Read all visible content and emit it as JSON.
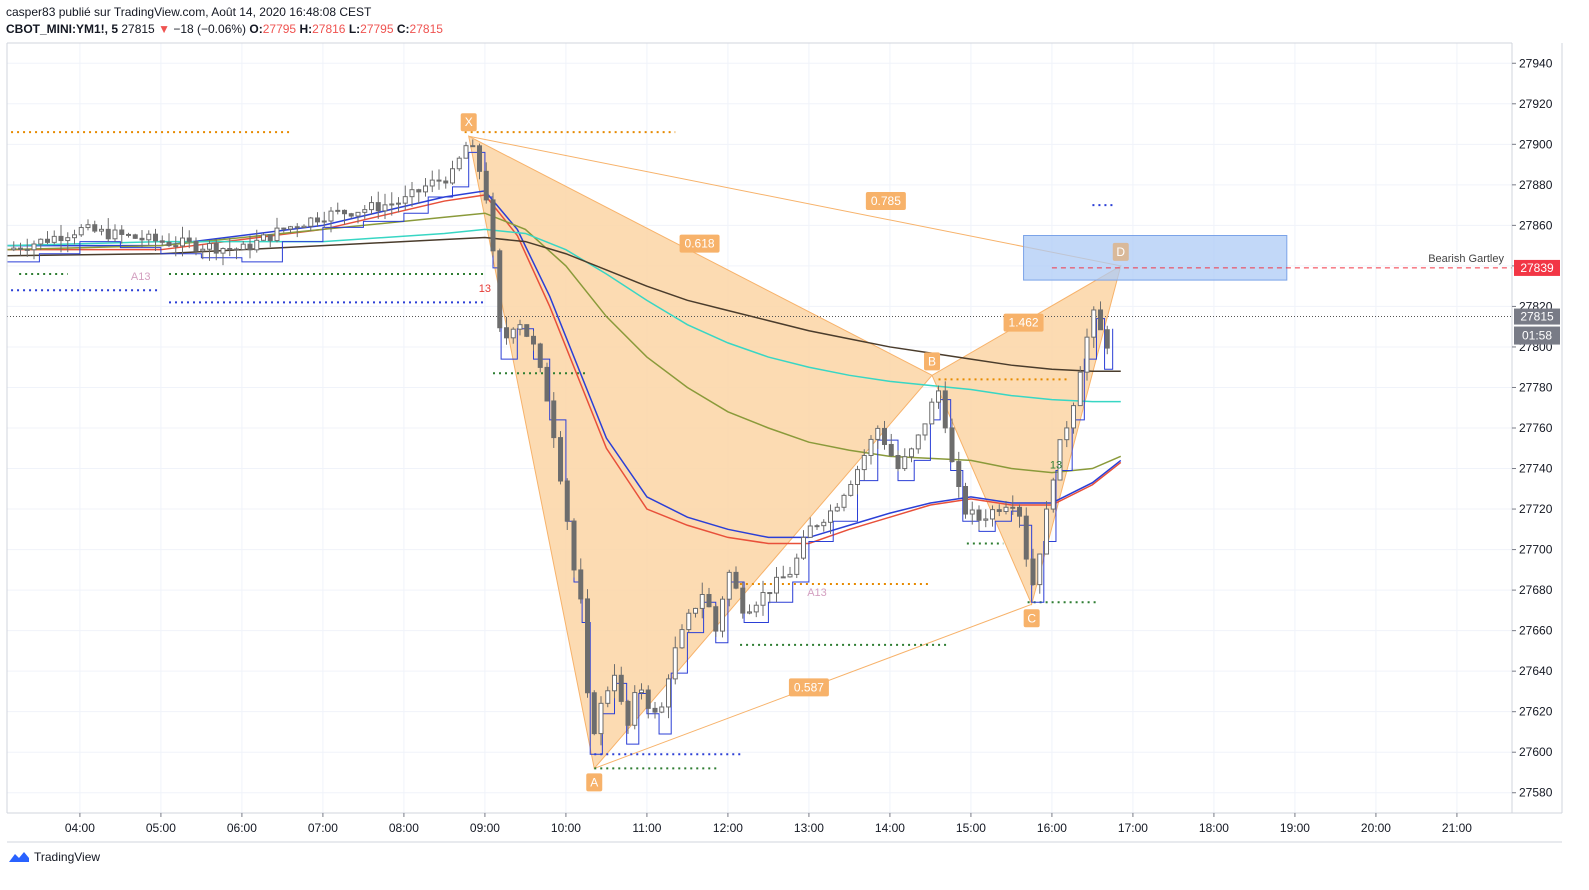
{
  "header": {
    "line1": "casper83 publié sur TradingView.com, Août 14, 2020 16:48:08 CEST",
    "symbol": "CBOT_MINI:YM1!, 5",
    "last": "27815",
    "change": "−18 (−0.06%)",
    "o_label": "O:",
    "o_value": "27795",
    "h_label": "H:",
    "h_value": "27816",
    "l_label": "L:",
    "l_value": "27795",
    "c_label": "C:",
    "c_value": "27815"
  },
  "footer": {
    "brand": "TradingView"
  },
  "colors": {
    "pattern_fill": "#fcd5a4",
    "pattern_line": "#f7b26a",
    "prz_box": "#aecbf5",
    "price_red": "#f23645",
    "candle": "#6d6d6d",
    "ema_red": "#e8503a",
    "ema_blue": "#2b3fd6",
    "ema_olive": "#8a9a3a",
    "ema_teal": "#38d6c4",
    "ema_dark": "#4a3c2c"
  },
  "chart_data": {
    "type": "candlestick",
    "symbol": "CBOT_MINI:YM1!",
    "timeframe": "5",
    "ylim": [
      27570,
      27950
    ],
    "y_ticks": [
      "27580",
      "27600",
      "27620",
      "27640",
      "27660",
      "27680",
      "27700",
      "27720",
      "27740",
      "27760",
      "27780",
      "27800",
      "27820",
      "27840",
      "27860",
      "27880",
      "27900",
      "27920",
      "27940"
    ],
    "x_ticks": [
      "04:00",
      "05:00",
      "06:00",
      "07:00",
      "08:00",
      "09:00",
      "10:00",
      "11:00",
      "12:00",
      "13:00",
      "14:00",
      "15:00",
      "16:00",
      "17:00",
      "18:00",
      "19:00",
      "20:00",
      "21:00"
    ],
    "x_range_hours": [
      3.1,
      21.68
    ],
    "close_path": [
      [
        3.1,
        27848
      ],
      [
        3.5,
        27852
      ],
      [
        4.0,
        27858
      ],
      [
        4.5,
        27855
      ],
      [
        5.0,
        27852
      ],
      [
        5.5,
        27850
      ],
      [
        6.0,
        27848
      ],
      [
        6.5,
        27858
      ],
      [
        7.0,
        27865
      ],
      [
        7.5,
        27868
      ],
      [
        8.0,
        27872
      ],
      [
        8.3,
        27880
      ],
      [
        8.6,
        27885
      ],
      [
        8.8,
        27902
      ],
      [
        9.0,
        27880
      ],
      [
        9.1,
        27845
      ],
      [
        9.2,
        27800
      ],
      [
        9.4,
        27815
      ],
      [
        9.6,
        27800
      ],
      [
        9.8,
        27770
      ],
      [
        10.0,
        27720
      ],
      [
        10.1,
        27690
      ],
      [
        10.2,
        27670
      ],
      [
        10.3,
        27605
      ],
      [
        10.45,
        27625
      ],
      [
        10.6,
        27640
      ],
      [
        10.75,
        27610
      ],
      [
        10.9,
        27635
      ],
      [
        11.0,
        27625
      ],
      [
        11.15,
        27615
      ],
      [
        11.3,
        27645
      ],
      [
        11.5,
        27665
      ],
      [
        11.7,
        27680
      ],
      [
        11.85,
        27660
      ],
      [
        12.0,
        27690
      ],
      [
        12.2,
        27670
      ],
      [
        12.5,
        27680
      ],
      [
        12.8,
        27690
      ],
      [
        13.0,
        27710
      ],
      [
        13.3,
        27720
      ],
      [
        13.6,
        27740
      ],
      [
        13.85,
        27760
      ],
      [
        14.1,
        27740
      ],
      [
        14.3,
        27750
      ],
      [
        14.5,
        27770
      ],
      [
        14.62,
        27780
      ],
      [
        14.75,
        27745
      ],
      [
        14.9,
        27720
      ],
      [
        15.1,
        27715
      ],
      [
        15.3,
        27720
      ],
      [
        15.5,
        27725
      ],
      [
        15.6,
        27718
      ],
      [
        15.75,
        27680
      ],
      [
        15.9,
        27710
      ],
      [
        16.05,
        27745
      ],
      [
        16.25,
        27770
      ],
      [
        16.4,
        27800
      ],
      [
        16.55,
        27820
      ],
      [
        16.65,
        27795
      ],
      [
        16.75,
        27815
      ]
    ],
    "indicators": {
      "ema_red": [
        [
          3.1,
          27848
        ],
        [
          5,
          27848
        ],
        [
          7,
          27858
        ],
        [
          8.5,
          27872
        ],
        [
          9.0,
          27875
        ],
        [
          9.4,
          27855
        ],
        [
          9.8,
          27820
        ],
        [
          10.5,
          27750
        ],
        [
          11.0,
          27720
        ],
        [
          11.5,
          27712
        ],
        [
          12.0,
          27706
        ],
        [
          12.5,
          27703
        ],
        [
          13.0,
          27703
        ],
        [
          13.5,
          27710
        ],
        [
          14.0,
          27716
        ],
        [
          14.5,
          27722
        ],
        [
          15.0,
          27725
        ],
        [
          15.5,
          27722
        ],
        [
          16.0,
          27722
        ],
        [
          16.5,
          27732
        ],
        [
          16.85,
          27743
        ]
      ],
      "ema_blue": [
        [
          3.1,
          27850
        ],
        [
          5,
          27850
        ],
        [
          7,
          27860
        ],
        [
          8.5,
          27874
        ],
        [
          9.0,
          27877
        ],
        [
          9.4,
          27858
        ],
        [
          9.8,
          27825
        ],
        [
          10.5,
          27755
        ],
        [
          11.0,
          27726
        ],
        [
          11.5,
          27716
        ],
        [
          12.0,
          27710
        ],
        [
          12.5,
          27706
        ],
        [
          13.0,
          27706
        ],
        [
          13.5,
          27712
        ],
        [
          14.0,
          27718
        ],
        [
          14.5,
          27723
        ],
        [
          15.0,
          27726
        ],
        [
          15.5,
          27723
        ],
        [
          16.0,
          27723
        ],
        [
          16.5,
          27733
        ],
        [
          16.85,
          27744
        ]
      ],
      "ema_olive": [
        [
          3.1,
          27848
        ],
        [
          5,
          27850
        ],
        [
          7,
          27858
        ],
        [
          8.5,
          27864
        ],
        [
          9.0,
          27866
        ],
        [
          9.5,
          27858
        ],
        [
          10.0,
          27840
        ],
        [
          10.5,
          27815
        ],
        [
          11.0,
          27795
        ],
        [
          11.5,
          27780
        ],
        [
          12.0,
          27768
        ],
        [
          12.5,
          27760
        ],
        [
          13.0,
          27753
        ],
        [
          13.5,
          27749
        ],
        [
          14.0,
          27746
        ],
        [
          14.5,
          27745
        ],
        [
          15.0,
          27744
        ],
        [
          15.5,
          27740
        ],
        [
          16.0,
          27738
        ],
        [
          16.5,
          27740
        ],
        [
          16.85,
          27746
        ]
      ],
      "ema_teal": [
        [
          3.1,
          27850
        ],
        [
          5,
          27852
        ],
        [
          7,
          27852
        ],
        [
          8.5,
          27856
        ],
        [
          9.0,
          27858
        ],
        [
          9.5,
          27856
        ],
        [
          10.0,
          27848
        ],
        [
          10.5,
          27836
        ],
        [
          11.0,
          27823
        ],
        [
          11.5,
          27811
        ],
        [
          12.0,
          27802
        ],
        [
          12.5,
          27795
        ],
        [
          13.0,
          27790
        ],
        [
          13.5,
          27786
        ],
        [
          14.0,
          27783
        ],
        [
          14.5,
          27781
        ],
        [
          15.0,
          27779
        ],
        [
          15.5,
          27776
        ],
        [
          16.0,
          27774
        ],
        [
          16.5,
          27773
        ],
        [
          16.85,
          27773
        ]
      ],
      "ema_dark": [
        [
          3.1,
          27845
        ],
        [
          5,
          27846
        ],
        [
          7,
          27850
        ],
        [
          8.5,
          27853
        ],
        [
          9.0,
          27854
        ],
        [
          9.5,
          27852
        ],
        [
          10.0,
          27846
        ],
        [
          10.5,
          27838
        ],
        [
          11.0,
          27830
        ],
        [
          11.5,
          27823
        ],
        [
          12.0,
          27818
        ],
        [
          12.5,
          27813
        ],
        [
          13.0,
          27808
        ],
        [
          13.5,
          27804
        ],
        [
          14.0,
          27800
        ],
        [
          14.5,
          27797
        ],
        [
          15.0,
          27794
        ],
        [
          15.5,
          27791
        ],
        [
          16.0,
          27789
        ],
        [
          16.5,
          27788
        ],
        [
          16.85,
          27788
        ]
      ]
    },
    "harmonic_pattern": {
      "name": "Bearish Gartley",
      "points": [
        {
          "label": "X",
          "x": 8.8,
          "y": 27904
        },
        {
          "label": "A",
          "x": 10.35,
          "y": 27592
        },
        {
          "label": "B",
          "x": 14.52,
          "y": 27786
        },
        {
          "label": "C",
          "x": 15.75,
          "y": 27673
        },
        {
          "label": "D",
          "x": 16.85,
          "y": 27840
        }
      ],
      "ratios": [
        {
          "text": "0.618",
          "x": 11.65,
          "y": 27851
        },
        {
          "text": "0.587",
          "x": 13.0,
          "y": 27632
        },
        {
          "text": "1.462",
          "x": 15.65,
          "y": 27812
        },
        {
          "text": "0.785",
          "x": 13.95,
          "y": 27872
        }
      ],
      "prz_box": {
        "x0": 15.65,
        "x1": 18.9,
        "y0": 27833,
        "y1": 27855
      }
    },
    "levels": {
      "target": 27839,
      "target_label": "27839",
      "pattern_label": "Bearish Gartley",
      "last_price": 27815,
      "last_label": "27815",
      "countdown": "01:58",
      "axis_hidden_label": "27820"
    },
    "dotted_levels": [
      {
        "color": "#e68a00",
        "y": 27906,
        "x0": 3.15,
        "x1": 6.6
      },
      {
        "color": "#e68a00",
        "y": 27906,
        "x0": 8.75,
        "x1": 11.35
      },
      {
        "color": "#2b3fd6",
        "y": 27828,
        "x0": 3.15,
        "x1": 5.0
      },
      {
        "color": "#2b3fd6",
        "y": 27822,
        "x0": 5.1,
        "x1": 9.0
      },
      {
        "color": "#2e7d32",
        "y": 27836,
        "x0": 3.25,
        "x1": 3.85
      },
      {
        "color": "#2e7d32",
        "y": 27836,
        "x0": 5.1,
        "x1": 9.0
      },
      {
        "color": "#2e7d32",
        "y": 27787,
        "x0": 9.1,
        "x1": 10.25
      },
      {
        "color": "#2b3fd6",
        "y": 27599,
        "x0": 10.35,
        "x1": 12.2
      },
      {
        "color": "#2e7d32",
        "y": 27592,
        "x0": 10.35,
        "x1": 11.9
      },
      {
        "color": "#e68a00",
        "y": 27683,
        "x0": 12.0,
        "x1": 14.5
      },
      {
        "color": "#2e7d32",
        "y": 27653,
        "x0": 12.15,
        "x1": 14.7
      },
      {
        "color": "#e68a00",
        "y": 27784,
        "x0": 14.6,
        "x1": 16.2
      },
      {
        "color": "#2e7d32",
        "y": 27703,
        "x0": 14.95,
        "x1": 15.4
      },
      {
        "color": "#2e7d32",
        "y": 27674,
        "x0": 15.7,
        "x1": 16.55
      },
      {
        "color": "#2b3fd6",
        "y": 27870,
        "x0": 16.5,
        "x1": 16.75
      }
    ],
    "markers": [
      {
        "text": "A13",
        "x": 4.75,
        "y": 27833,
        "color": "#d4a0c0"
      },
      {
        "text": "A13",
        "x": 13.1,
        "y": 27677,
        "color": "#d4a0c0"
      },
      {
        "text": "13",
        "x": 9.0,
        "y": 27827,
        "color": "#e53935"
      },
      {
        "text": "13",
        "x": 16.05,
        "y": 27740,
        "color": "#2e7d32"
      }
    ]
  }
}
